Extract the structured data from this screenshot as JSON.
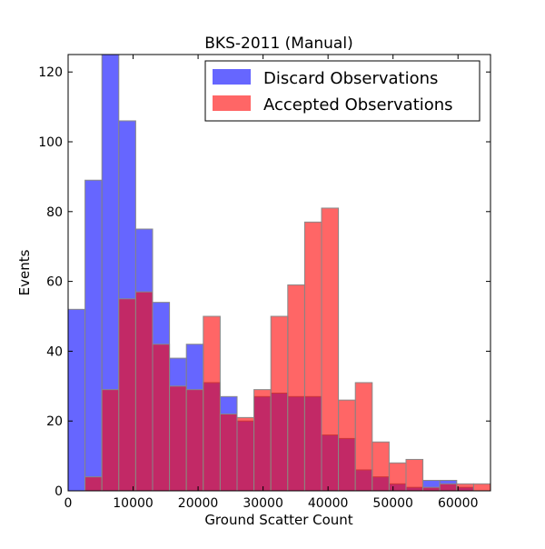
{
  "chart_data": {
    "type": "bar",
    "title": "BKS-2011 (Manual)",
    "xlabel": "Ground Scatter Count",
    "ylabel": "Events",
    "xlim": [
      0,
      65000
    ],
    "ylim": [
      0,
      125
    ],
    "xticks": [
      0,
      10000,
      20000,
      30000,
      40000,
      50000,
      60000
    ],
    "yticks": [
      0,
      20,
      40,
      60,
      80,
      100,
      120
    ],
    "bin_edges": [
      0,
      2600,
      5200,
      7800,
      10400,
      13000,
      15600,
      18200,
      20800,
      23400,
      26000,
      28600,
      31200,
      33800,
      36400,
      39000,
      41600,
      44200,
      46800,
      49400,
      52000,
      54600,
      57200,
      59800,
      62400,
      65000
    ],
    "series": [
      {
        "name": "Discard Observations",
        "color": "#0000ff",
        "values": [
          52,
          89,
          125,
          106,
          75,
          54,
          38,
          42,
          31,
          27,
          20,
          27,
          28,
          27,
          27,
          16,
          15,
          6,
          4,
          2,
          1,
          3,
          3,
          1,
          0
        ]
      },
      {
        "name": "Accepted Observations",
        "color": "#ff0000",
        "values": [
          0,
          4,
          29,
          55,
          57,
          42,
          30,
          29,
          50,
          22,
          21,
          29,
          50,
          59,
          77,
          81,
          26,
          31,
          14,
          8,
          9,
          1,
          2,
          2,
          2
        ]
      }
    ],
    "legend": "top-right",
    "grid": false
  }
}
